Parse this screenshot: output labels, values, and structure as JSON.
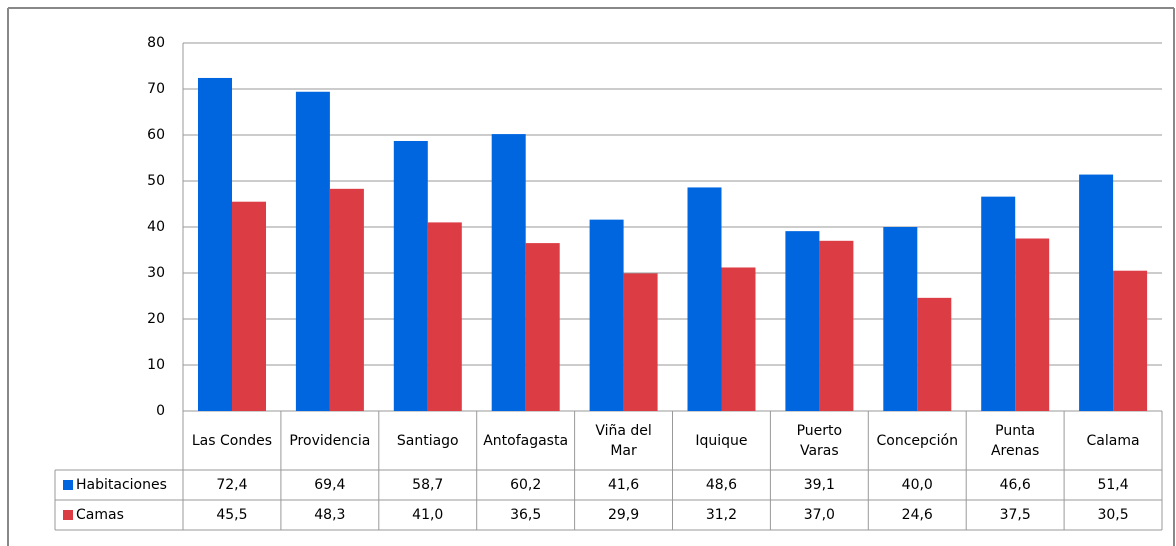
{
  "chart_data": {
    "type": "bar",
    "categories": [
      "Las Condes",
      "Providencia",
      "Santiago",
      "Antofagasta",
      "Viña del\nMar",
      "Iquique",
      "Puerto\nVaras",
      "Concepción",
      "Punta\nArenas",
      "Calama"
    ],
    "series": [
      {
        "name": "Habitaciones",
        "color": "#0066e0",
        "values": [
          72.4,
          69.4,
          58.7,
          60.2,
          41.6,
          48.6,
          39.1,
          40.0,
          46.6,
          51.4
        ],
        "value_labels": [
          "72,4",
          "69,4",
          "58,7",
          "60,2",
          "41,6",
          "48,6",
          "39,1",
          "40,0",
          "46,6",
          "51,4"
        ]
      },
      {
        "name": "Camas",
        "color": "#dc3c44",
        "values": [
          45.5,
          48.3,
          41.0,
          36.5,
          29.9,
          31.2,
          37.0,
          24.6,
          37.5,
          30.5
        ],
        "value_labels": [
          "45,5",
          "48,3",
          "41,0",
          "36,5",
          "29,9",
          "31,2",
          "37,0",
          "24,6",
          "37,5",
          "30,5"
        ]
      }
    ],
    "ylim": [
      0,
      80
    ],
    "yticks": [
      0,
      10,
      20,
      30,
      40,
      50,
      60,
      70,
      80
    ],
    "grid": true
  }
}
